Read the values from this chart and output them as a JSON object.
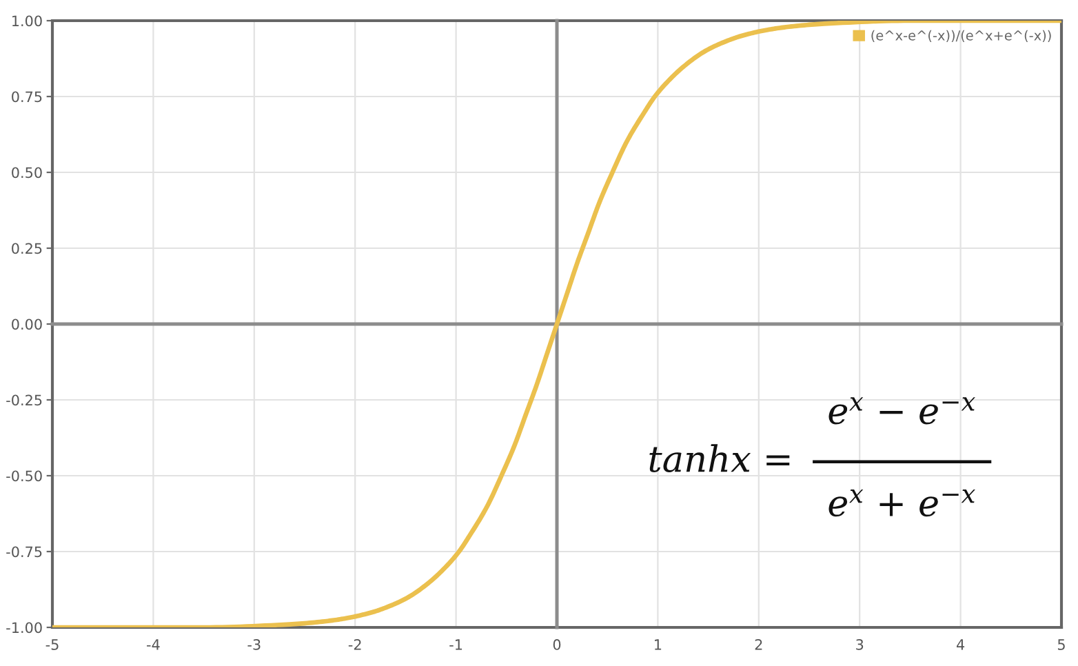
{
  "chart_data": {
    "type": "line",
    "x": [
      -5,
      -4,
      -3.5,
      -2.65,
      -2.3,
      -2.09,
      -1.83,
      -1.66,
      -1.47,
      -1.26,
      -1.1,
      -0.97,
      -0.87,
      -0.69,
      -0.55,
      -0.42,
      -0.31,
      -0.2,
      -0.1,
      0,
      0.1,
      0.2,
      0.31,
      0.42,
      0.55,
      0.69,
      0.87,
      0.97,
      1.1,
      1.26,
      1.47,
      1.66,
      1.83,
      2.09,
      2.3,
      2.65,
      3.5,
      4,
      5
    ],
    "series": [
      {
        "name": "(e^x-e^(-x))/(e^x+e^(-x))",
        "color": "#ebc04e",
        "values": [
          -1.0,
          -1.0,
          -1.0,
          -0.99,
          -0.98,
          -0.97,
          -0.95,
          -0.93,
          -0.9,
          -0.85,
          -0.8,
          -0.75,
          -0.7,
          -0.6,
          -0.5,
          -0.4,
          -0.3,
          -0.2,
          -0.1,
          0,
          0.1,
          0.2,
          0.3,
          0.4,
          0.5,
          0.6,
          0.7,
          0.75,
          0.8,
          0.85,
          0.9,
          0.93,
          0.95,
          0.97,
          0.98,
          0.99,
          1.0,
          1.0,
          1.0
        ]
      }
    ],
    "xlim": [
      -5,
      5
    ],
    "ylim": [
      -1,
      1
    ],
    "xticks": [
      -5,
      -4,
      -3,
      -2,
      -1,
      0,
      1,
      2,
      3,
      4,
      5
    ],
    "yticks": [
      {
        "value": -1,
        "label": "-1.00"
      },
      {
        "value": -0.75,
        "label": "-0.75"
      },
      {
        "value": -0.5,
        "label": "-0.50"
      },
      {
        "value": -0.25,
        "label": "-0.25"
      },
      {
        "value": 0,
        "label": "0.00"
      },
      {
        "value": 0.25,
        "label": "0.25"
      },
      {
        "value": 0.5,
        "label": "0.50"
      },
      {
        "value": 0.75,
        "label": "0.75"
      },
      {
        "value": 1,
        "label": "1.00"
      }
    ],
    "annotations": [
      "tanhx =",
      "e$^{x}$ − e$^{−x}$",
      "e$^{x}$ + e$^{−x}$"
    ],
    "grid": true,
    "legend": "top right",
    "line_style": "solid",
    "marker": "none"
  }
}
